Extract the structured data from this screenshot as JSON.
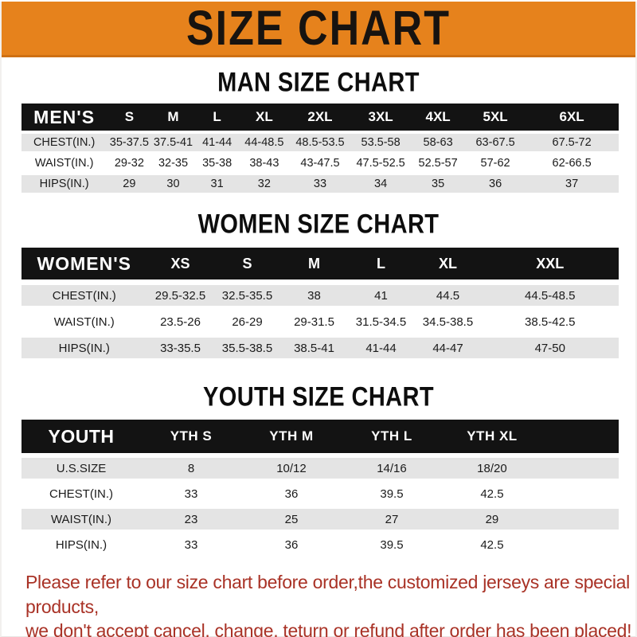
{
  "banner": {
    "title": "SIZE CHART",
    "bg_color": "#E6821C",
    "text_color": "#171310"
  },
  "chart_data": [
    {
      "type": "table",
      "title": "MAN SIZE CHART",
      "header_label": "MEN'S",
      "columns": [
        "S",
        "M",
        "L",
        "XL",
        "2XL",
        "3XL",
        "4XL",
        "5XL",
        "6XL"
      ],
      "rows": [
        {
          "label": "CHEST(IN.)",
          "values": [
            "35-37.5",
            "37.5-41",
            "41-44",
            "44-48.5",
            "48.5-53.5",
            "53.5-58",
            "58-63",
            "63-67.5",
            "67.5-72"
          ]
        },
        {
          "label": "WAIST(IN.)",
          "values": [
            "29-32",
            "32-35",
            "35-38",
            "38-43",
            "43-47.5",
            "47.5-52.5",
            "52.5-57",
            "57-62",
            "62-66.5"
          ]
        },
        {
          "label": "HIPS(IN.)",
          "values": [
            "29",
            "30",
            "31",
            "32",
            "33",
            "34",
            "35",
            "36",
            "37"
          ]
        }
      ]
    },
    {
      "type": "table",
      "title": "WOMEN SIZE CHART",
      "header_label": "WOMEN'S",
      "columns": [
        "XS",
        "S",
        "M",
        "L",
        "XL",
        "XXL"
      ],
      "rows": [
        {
          "label": "CHEST(IN.)",
          "values": [
            "29.5-32.5",
            "32.5-35.5",
            "38",
            "41",
            "44.5",
            "44.5-48.5"
          ]
        },
        {
          "label": "WAIST(IN.)",
          "values": [
            "23.5-26",
            "26-29",
            "29-31.5",
            "31.5-34.5",
            "34.5-38.5",
            "38.5-42.5"
          ]
        },
        {
          "label": "HIPS(IN.)",
          "values": [
            "33-35.5",
            "35.5-38.5",
            "38.5-41",
            "41-44",
            "44-47",
            "47-50"
          ]
        }
      ]
    },
    {
      "type": "table",
      "title": "YOUTH SIZE CHART",
      "header_label": "YOUTH",
      "columns": [
        "YTH S",
        "YTH M",
        "YTH L",
        "YTH XL"
      ],
      "rows": [
        {
          "label": "U.S.SIZE",
          "values": [
            "8",
            "10/12",
            "14/16",
            "18/20"
          ]
        },
        {
          "label": "CHEST(IN.)",
          "values": [
            "33",
            "36",
            "39.5",
            "42.5"
          ]
        },
        {
          "label": "WAIST(IN.)",
          "values": [
            "23",
            "25",
            "27",
            "29"
          ]
        },
        {
          "label": "HIPS(IN.)",
          "values": [
            "33",
            "36",
            "39.5",
            "42.5"
          ]
        }
      ]
    }
  ],
  "footer": {
    "line1": "Please refer to our size chart before order,the customized jerseys are special products,",
    "line2": "we don't accept cancel, change, teturn or refund after order has been placed!",
    "text_color": "#A93226"
  },
  "colors": {
    "header_bar": "#131313",
    "row_alt": "#E4E4E4",
    "row_base": "#FFFFFF"
  }
}
